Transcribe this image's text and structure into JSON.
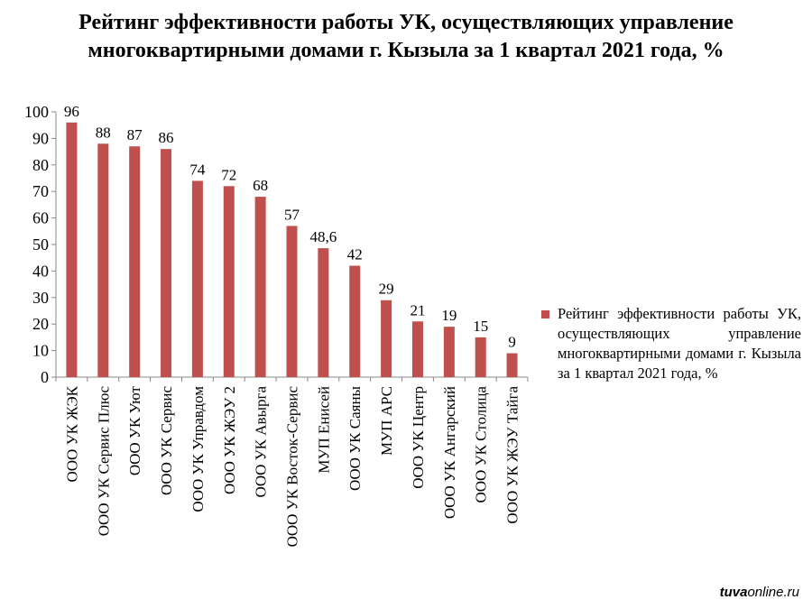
{
  "chart_data": {
    "type": "bar",
    "title": "Рейтинг эффективности работы УК, осуществляющих управление многоквартирными домами г. Кызыла за 1 квартал 2021 года, %",
    "categories": [
      "ООО УК ЖЭК",
      "ООО УК Сервис Плюс",
      "ООО УК Уют",
      "ООО УК Сервис",
      "ООО УК Управдом",
      "ООО УК ЖЭУ 2",
      "ООО УК Авырга",
      "ООО УК Восток-Сервис",
      "МУП Енисей",
      "ООО УК Саяны",
      "МУП АРС",
      "ООО УК Центр",
      "ООО УК Ангарский",
      "ООО УК Столица",
      "ООО УК ЖЭУ Тайга"
    ],
    "series": [
      {
        "name": "Рейтинг эффективности работы УК, осуществляющих управление многоквартирными домами г. Кызыла за 1 квартал 2021 года, %",
        "values": [
          96,
          88,
          87,
          86,
          74,
          72,
          68,
          57,
          48.6,
          42,
          29,
          21,
          19,
          15,
          9
        ],
        "data_labels": [
          "96",
          "88",
          "87",
          "86",
          "74",
          "72",
          "68",
          "57",
          "48,6",
          "42",
          "29",
          "21",
          "19",
          "15",
          "9"
        ],
        "color": "#c0504d"
      }
    ],
    "ylim": [
      0,
      100
    ],
    "yticks": [
      0,
      10,
      20,
      30,
      40,
      50,
      60,
      70,
      80,
      90,
      100
    ],
    "grid": false,
    "legend": "right"
  },
  "watermark": {
    "brand": "tuva",
    "suffix": "online.ru"
  }
}
